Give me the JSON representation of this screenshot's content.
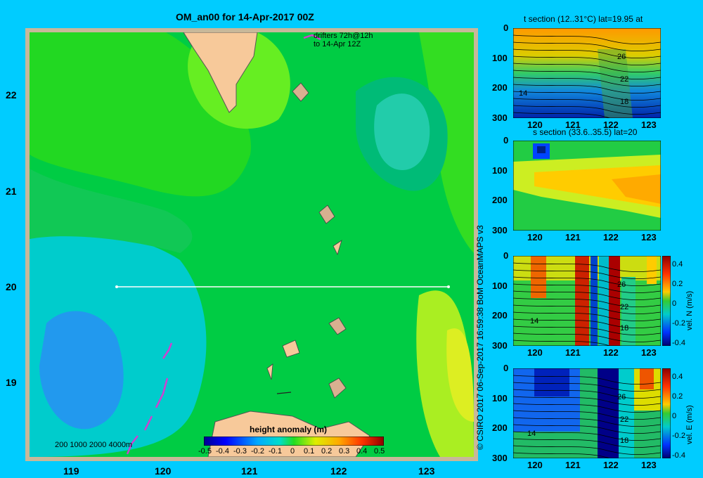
{
  "map": {
    "title": "OM_an00 for 14-Apr-2017 00Z",
    "drifter_note_line1": "drifters 72h@12h",
    "drifter_note_line2": "to 14-Apr 12Z",
    "lat_ticks": [
      "22",
      "21",
      "20",
      "19"
    ],
    "lon_ticks": [
      "119",
      "120",
      "121",
      "122",
      "123"
    ],
    "depth_legend": "200  1000  2000  4000m",
    "colorbar_title": "height anomaly (m)",
    "colorbar_ticks": [
      "-0.5",
      "-0.4",
      "-0.3",
      "-0.2",
      "-0.1",
      "0",
      "0.1",
      "0.2",
      "0.3",
      "0.4",
      "0.5"
    ]
  },
  "credit": "© CSIRO 2017   06-Sep-2017 16:59:38 BoM OceanMAPS v3",
  "panels": [
    {
      "title": "t section (12..31°C) lat=19.95 at",
      "y_ticks": [
        "0",
        "100",
        "200",
        "300"
      ],
      "x_ticks": [
        "120",
        "121",
        "122",
        "123"
      ],
      "contour_labels": [
        "26",
        "22",
        "18",
        "14"
      ]
    },
    {
      "title": "s section (33.6..35.5) lat=20",
      "y_ticks": [
        "0",
        "100",
        "200",
        "300"
      ],
      "x_ticks": [
        "120",
        "121",
        "122",
        "123"
      ]
    },
    {
      "title": "",
      "y_ticks": [
        "0",
        "100",
        "200",
        "300"
      ],
      "x_ticks": [
        "120",
        "121",
        "122",
        "123"
      ],
      "contour_labels": [
        "26",
        "22",
        "18",
        "14"
      ],
      "cb_label": "vel. N (m/s)",
      "cb_ticks": [
        "0.4",
        "0.2",
        "0",
        "-0.2",
        "-0.4"
      ]
    },
    {
      "title": "",
      "y_ticks": [
        "0",
        "100",
        "200",
        "300"
      ],
      "x_ticks": [
        "120",
        "121",
        "122",
        "123"
      ],
      "contour_labels": [
        "26",
        "22",
        "18",
        "14"
      ],
      "cb_label": "vel. E (m/s)",
      "cb_ticks": [
        "0.4",
        "0.2",
        "0",
        "-0.2",
        "-0.4"
      ]
    }
  ],
  "colors": {
    "background": "#00ccff",
    "land": "#f7c99a",
    "frame": "#c8b89a",
    "drifter": "#d040d0"
  }
}
